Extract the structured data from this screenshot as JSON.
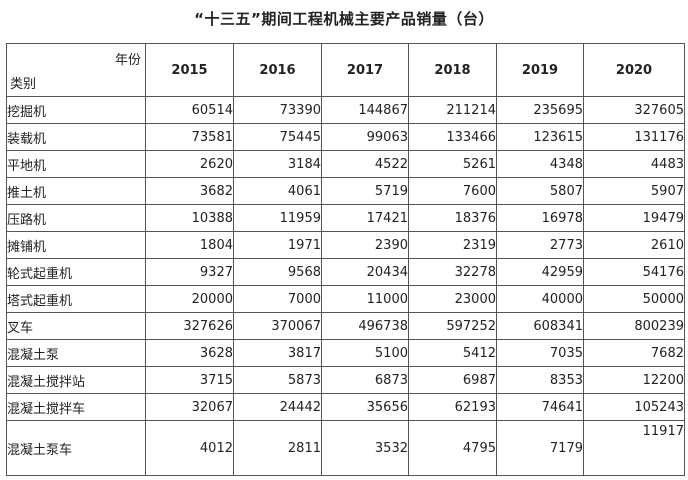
{
  "title": "“十三五”期间工程机械主要产品销量（台）",
  "header": {
    "col_label": "年份",
    "row_label": "类别",
    "years": [
      "2015",
      "2016",
      "2017",
      "2018",
      "2019",
      "2020"
    ]
  },
  "rows": [
    {
      "category": "挖掘机",
      "values": [
        "60514",
        "73390",
        "144867",
        "211214",
        "235695",
        "327605"
      ]
    },
    {
      "category": "装载机",
      "values": [
        "73581",
        "75445",
        "99063",
        "133466",
        "123615",
        "131176"
      ]
    },
    {
      "category": "平地机",
      "values": [
        "2620",
        "3184",
        "4522",
        "5261",
        "4348",
        "4483"
      ]
    },
    {
      "category": "推土机",
      "values": [
        "3682",
        "4061",
        "5719",
        "7600",
        "5807",
        "5907"
      ]
    },
    {
      "category": "压路机",
      "values": [
        "10388",
        "11959",
        "17421",
        "18376",
        "16978",
        "19479"
      ]
    },
    {
      "category": "摊铺机",
      "values": [
        "1804",
        "1971",
        "2390",
        "2319",
        "2773",
        "2610"
      ]
    },
    {
      "category": "轮式起重机",
      "values": [
        "9327",
        "9568",
        "20434",
        "32278",
        "42959",
        "54176"
      ]
    },
    {
      "category": "塔式起重机",
      "values": [
        "20000",
        "7000",
        "11000",
        "23000",
        "40000",
        "50000"
      ]
    },
    {
      "category": "叉车",
      "values": [
        "327626",
        "370067",
        "496738",
        "597252",
        "608341",
        "800239"
      ]
    },
    {
      "category": "混凝土泵",
      "values": [
        "3628",
        "3817",
        "5100",
        "5412",
        "7035",
        "7682"
      ]
    },
    {
      "category": "混凝土搅拌站",
      "values": [
        "3715",
        "5873",
        "6873",
        "6987",
        "8353",
        "12200"
      ]
    },
    {
      "category": "混凝土搅拌车",
      "values": [
        "32067",
        "24442",
        "35656",
        "62193",
        "74641",
        "105243"
      ]
    },
    {
      "category": "混凝土泵车",
      "values": [
        "4012",
        "2811",
        "3532",
        "4795",
        "7179",
        "11917"
      ]
    }
  ]
}
